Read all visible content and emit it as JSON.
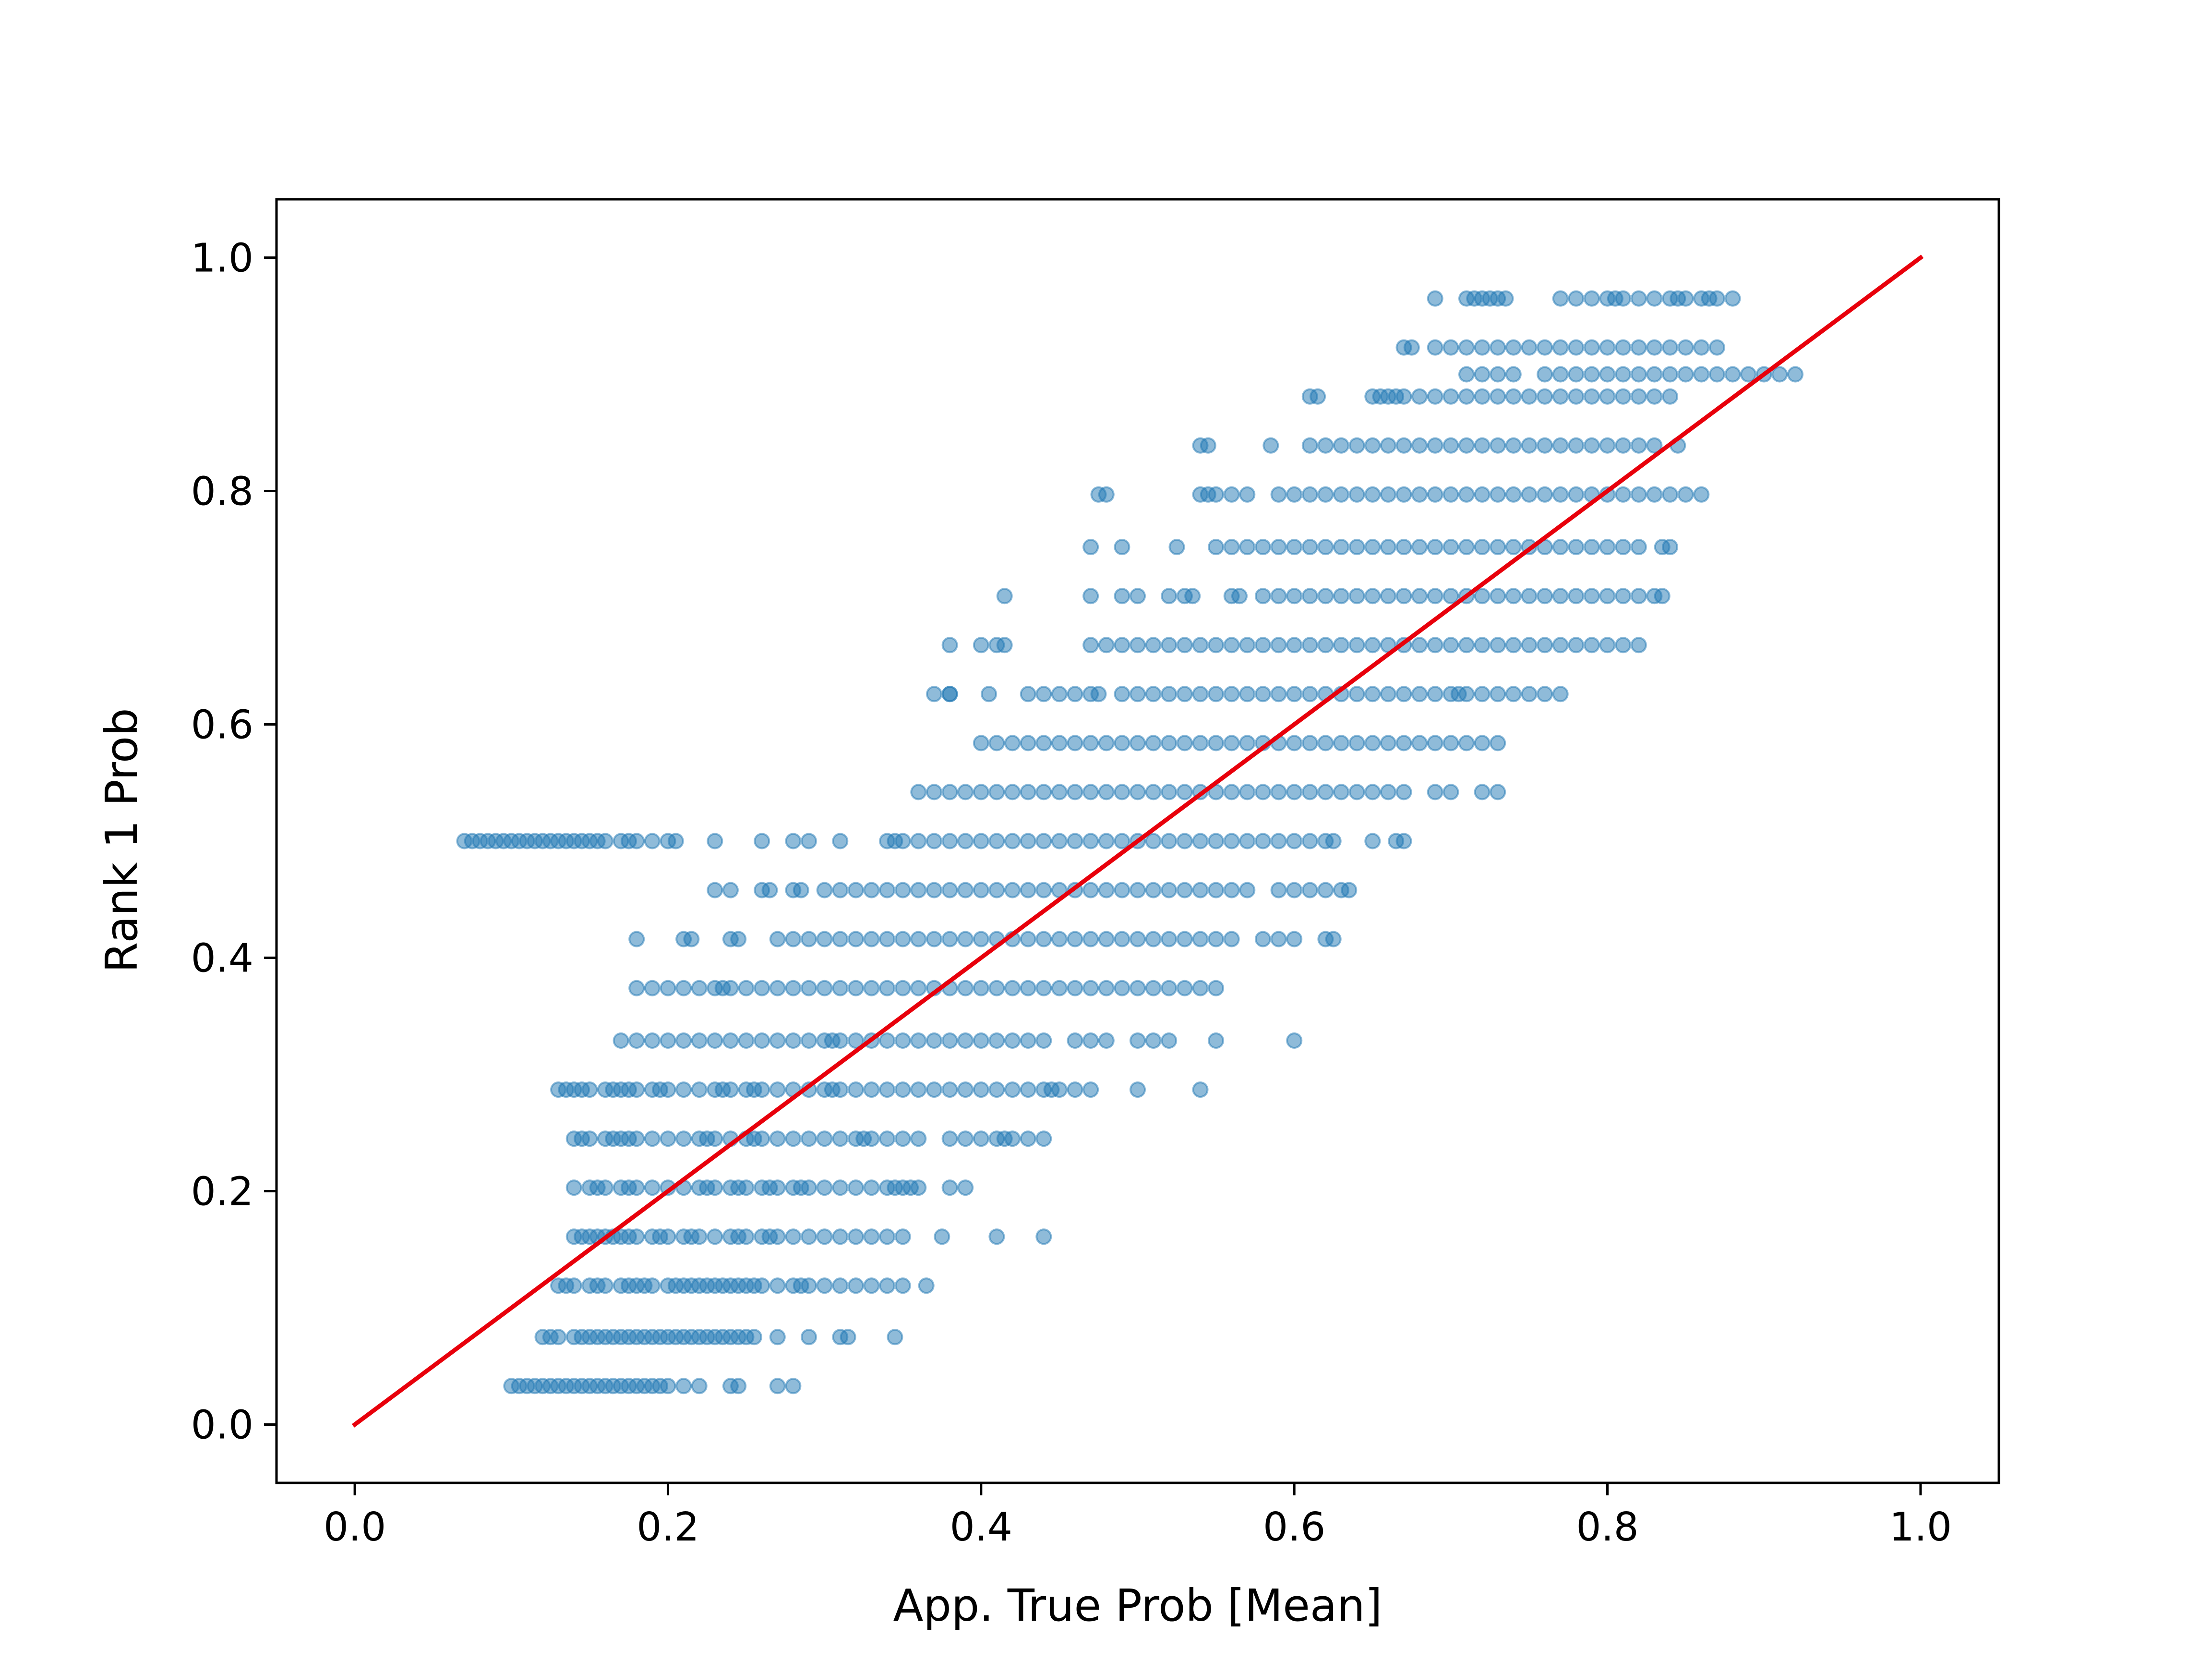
{
  "chart_data": {
    "type": "scatter",
    "xlabel": "App. True Prob [Mean]",
    "ylabel": "Rank 1 Prob",
    "xlim": [
      -0.05,
      1.05
    ],
    "ylim": [
      -0.05,
      1.05
    ],
    "x_ticks": [
      0.0,
      0.2,
      0.4,
      0.6,
      0.8,
      1.0
    ],
    "y_ticks": [
      0.0,
      0.2,
      0.4,
      0.6,
      0.8,
      1.0
    ],
    "x_tick_labels": [
      "0.0",
      "0.2",
      "0.4",
      "0.6",
      "0.8",
      "1.0"
    ],
    "y_tick_labels": [
      "0.0",
      "0.2",
      "0.4",
      "0.6",
      "0.8",
      "1.0"
    ],
    "grid": false,
    "legend": "none",
    "point_color": "#1f77b4",
    "point_alpha": 0.5,
    "line_color": "#e8000b",
    "reference_line": {
      "x": [
        0.0,
        1.0
      ],
      "y": [
        0.0,
        1.0
      ]
    },
    "series": [
      {
        "levels": [
          {
            "y": 0.033,
            "x": [
              0.1,
              0.105,
              0.11,
              0.115,
              0.12,
              0.125,
              0.13,
              0.135,
              0.14,
              0.145,
              0.15,
              0.155,
              0.16,
              0.165,
              0.17,
              0.175,
              0.18,
              0.185,
              0.19,
              0.195,
              0.2,
              0.21,
              0.22,
              0.24,
              0.245,
              0.27,
              0.28
            ]
          },
          {
            "y": 0.075,
            "x": [
              0.12,
              0.125,
              0.13,
              0.14,
              0.145,
              0.15,
              0.155,
              0.16,
              0.165,
              0.17,
              0.175,
              0.18,
              0.185,
              0.19,
              0.195,
              0.2,
              0.205,
              0.21,
              0.215,
              0.22,
              0.225,
              0.23,
              0.235,
              0.24,
              0.245,
              0.25,
              0.255,
              0.27,
              0.29,
              0.31,
              0.315,
              0.345
            ]
          },
          {
            "y": 0.119,
            "x": [
              0.13,
              0.135,
              0.14,
              0.15,
              0.155,
              0.16,
              0.17,
              0.175,
              0.18,
              0.185,
              0.19,
              0.2,
              0.205,
              0.21,
              0.215,
              0.22,
              0.225,
              0.23,
              0.235,
              0.24,
              0.245,
              0.25,
              0.255,
              0.26,
              0.27,
              0.28,
              0.285,
              0.29,
              0.3,
              0.31,
              0.32,
              0.33,
              0.34,
              0.35,
              0.365
            ]
          },
          {
            "y": 0.161,
            "x": [
              0.14,
              0.145,
              0.15,
              0.155,
              0.16,
              0.165,
              0.17,
              0.175,
              0.18,
              0.19,
              0.195,
              0.2,
              0.21,
              0.215,
              0.22,
              0.23,
              0.24,
              0.245,
              0.25,
              0.26,
              0.265,
              0.27,
              0.28,
              0.29,
              0.3,
              0.31,
              0.32,
              0.33,
              0.34,
              0.35,
              0.375,
              0.41,
              0.44
            ]
          },
          {
            "y": 0.203,
            "x": [
              0.14,
              0.15,
              0.155,
              0.16,
              0.17,
              0.175,
              0.18,
              0.19,
              0.2,
              0.21,
              0.22,
              0.225,
              0.23,
              0.24,
              0.245,
              0.25,
              0.26,
              0.265,
              0.27,
              0.28,
              0.285,
              0.29,
              0.3,
              0.31,
              0.32,
              0.33,
              0.34,
              0.345,
              0.35,
              0.355,
              0.36,
              0.38,
              0.39
            ]
          },
          {
            "y": 0.245,
            "x": [
              0.14,
              0.145,
              0.15,
              0.16,
              0.165,
              0.17,
              0.175,
              0.18,
              0.19,
              0.2,
              0.21,
              0.22,
              0.225,
              0.23,
              0.24,
              0.25,
              0.255,
              0.26,
              0.27,
              0.28,
              0.29,
              0.3,
              0.31,
              0.32,
              0.325,
              0.33,
              0.34,
              0.35,
              0.36,
              0.38,
              0.39,
              0.4,
              0.41,
              0.415,
              0.42,
              0.43,
              0.44
            ]
          },
          {
            "y": 0.287,
            "x": [
              0.13,
              0.135,
              0.14,
              0.145,
              0.15,
              0.16,
              0.165,
              0.17,
              0.175,
              0.18,
              0.19,
              0.195,
              0.2,
              0.21,
              0.22,
              0.23,
              0.235,
              0.24,
              0.25,
              0.255,
              0.26,
              0.27,
              0.28,
              0.29,
              0.3,
              0.305,
              0.31,
              0.32,
              0.33,
              0.34,
              0.35,
              0.36,
              0.37,
              0.38,
              0.39,
              0.4,
              0.41,
              0.42,
              0.43,
              0.44,
              0.445,
              0.45,
              0.46,
              0.47,
              0.5,
              0.54
            ]
          },
          {
            "y": 0.329,
            "x": [
              0.17,
              0.18,
              0.19,
              0.2,
              0.21,
              0.22,
              0.23,
              0.24,
              0.25,
              0.26,
              0.27,
              0.28,
              0.29,
              0.3,
              0.305,
              0.31,
              0.32,
              0.33,
              0.34,
              0.35,
              0.36,
              0.37,
              0.38,
              0.39,
              0.4,
              0.41,
              0.42,
              0.43,
              0.44,
              0.46,
              0.47,
              0.48,
              0.5,
              0.51,
              0.52,
              0.55,
              0.6
            ]
          },
          {
            "y": 0.374,
            "x": [
              0.18,
              0.19,
              0.2,
              0.21,
              0.22,
              0.23,
              0.235,
              0.24,
              0.25,
              0.26,
              0.27,
              0.28,
              0.29,
              0.3,
              0.31,
              0.32,
              0.33,
              0.34,
              0.35,
              0.36,
              0.37,
              0.38,
              0.39,
              0.4,
              0.41,
              0.42,
              0.43,
              0.44,
              0.45,
              0.46,
              0.47,
              0.48,
              0.49,
              0.5,
              0.51,
              0.52,
              0.53,
              0.54,
              0.55
            ]
          },
          {
            "y": 0.416,
            "x": [
              0.18,
              0.21,
              0.215,
              0.24,
              0.245,
              0.27,
              0.28,
              0.29,
              0.3,
              0.31,
              0.32,
              0.33,
              0.34,
              0.35,
              0.36,
              0.37,
              0.38,
              0.39,
              0.4,
              0.41,
              0.42,
              0.43,
              0.44,
              0.45,
              0.46,
              0.47,
              0.48,
              0.49,
              0.5,
              0.51,
              0.52,
              0.53,
              0.54,
              0.55,
              0.56,
              0.58,
              0.59,
              0.6,
              0.62,
              0.625
            ]
          },
          {
            "y": 0.458,
            "x": [
              0.23,
              0.24,
              0.26,
              0.265,
              0.28,
              0.285,
              0.3,
              0.31,
              0.32,
              0.33,
              0.34,
              0.35,
              0.36,
              0.37,
              0.38,
              0.39,
              0.4,
              0.41,
              0.42,
              0.43,
              0.44,
              0.45,
              0.46,
              0.47,
              0.48,
              0.49,
              0.5,
              0.51,
              0.52,
              0.53,
              0.54,
              0.55,
              0.56,
              0.57,
              0.59,
              0.6,
              0.61,
              0.62,
              0.63,
              0.635
            ]
          },
          {
            "y": 0.5,
            "x": [
              0.07,
              0.075,
              0.08,
              0.085,
              0.09,
              0.095,
              0.1,
              0.105,
              0.11,
              0.115,
              0.12,
              0.125,
              0.13,
              0.135,
              0.14,
              0.145,
              0.15,
              0.155,
              0.16,
              0.17,
              0.175,
              0.18,
              0.19,
              0.2,
              0.205,
              0.23,
              0.26,
              0.28,
              0.29,
              0.31,
              0.34,
              0.345,
              0.35,
              0.36,
              0.37,
              0.38,
              0.39,
              0.4,
              0.41,
              0.42,
              0.43,
              0.44,
              0.45,
              0.46,
              0.47,
              0.48,
              0.49,
              0.5,
              0.51,
              0.52,
              0.53,
              0.54,
              0.55,
              0.56,
              0.57,
              0.58,
              0.59,
              0.6,
              0.61,
              0.62,
              0.625,
              0.65,
              0.665,
              0.67
            ]
          },
          {
            "y": 0.542,
            "x": [
              0.36,
              0.37,
              0.38,
              0.39,
              0.4,
              0.41,
              0.42,
              0.43,
              0.44,
              0.45,
              0.46,
              0.47,
              0.48,
              0.49,
              0.5,
              0.51,
              0.52,
              0.53,
              0.54,
              0.55,
              0.56,
              0.57,
              0.58,
              0.59,
              0.6,
              0.61,
              0.62,
              0.63,
              0.64,
              0.65,
              0.66,
              0.67,
              0.69,
              0.7,
              0.72,
              0.73
            ]
          },
          {
            "y": 0.584,
            "x": [
              0.4,
              0.41,
              0.42,
              0.43,
              0.44,
              0.45,
              0.46,
              0.47,
              0.48,
              0.49,
              0.5,
              0.51,
              0.52,
              0.53,
              0.54,
              0.55,
              0.56,
              0.57,
              0.58,
              0.59,
              0.6,
              0.61,
              0.62,
              0.63,
              0.64,
              0.65,
              0.66,
              0.67,
              0.68,
              0.69,
              0.7,
              0.71,
              0.72,
              0.73
            ]
          },
          {
            "y": 0.626,
            "x": [
              0.37,
              0.38,
              0.38,
              0.405,
              0.43,
              0.44,
              0.45,
              0.46,
              0.47,
              0.475,
              0.49,
              0.5,
              0.51,
              0.52,
              0.53,
              0.54,
              0.55,
              0.56,
              0.57,
              0.58,
              0.59,
              0.6,
              0.61,
              0.62,
              0.63,
              0.64,
              0.65,
              0.66,
              0.67,
              0.68,
              0.69,
              0.7,
              0.705,
              0.71,
              0.72,
              0.73,
              0.74,
              0.75,
              0.76,
              0.77
            ]
          },
          {
            "y": 0.668,
            "x": [
              0.38,
              0.4,
              0.41,
              0.415,
              0.47,
              0.48,
              0.49,
              0.5,
              0.51,
              0.52,
              0.53,
              0.54,
              0.55,
              0.56,
              0.57,
              0.58,
              0.59,
              0.6,
              0.61,
              0.62,
              0.63,
              0.64,
              0.65,
              0.66,
              0.67,
              0.68,
              0.69,
              0.7,
              0.71,
              0.72,
              0.73,
              0.74,
              0.75,
              0.76,
              0.77,
              0.78,
              0.79,
              0.8,
              0.81,
              0.82
            ]
          },
          {
            "y": 0.71,
            "x": [
              0.415,
              0.47,
              0.49,
              0.5,
              0.52,
              0.53,
              0.535,
              0.56,
              0.565,
              0.58,
              0.59,
              0.6,
              0.61,
              0.62,
              0.63,
              0.64,
              0.65,
              0.66,
              0.67,
              0.68,
              0.69,
              0.7,
              0.71,
              0.72,
              0.73,
              0.74,
              0.75,
              0.76,
              0.77,
              0.78,
              0.79,
              0.8,
              0.81,
              0.82,
              0.83,
              0.835
            ]
          },
          {
            "y": 0.752,
            "x": [
              0.47,
              0.49,
              0.525,
              0.55,
              0.56,
              0.57,
              0.58,
              0.59,
              0.6,
              0.61,
              0.62,
              0.63,
              0.64,
              0.65,
              0.66,
              0.67,
              0.68,
              0.69,
              0.7,
              0.71,
              0.72,
              0.73,
              0.74,
              0.75,
              0.76,
              0.77,
              0.78,
              0.79,
              0.8,
              0.81,
              0.82,
              0.835,
              0.84
            ]
          },
          {
            "y": 0.797,
            "x": [
              0.475,
              0.48,
              0.54,
              0.545,
              0.55,
              0.56,
              0.57,
              0.59,
              0.6,
              0.61,
              0.62,
              0.63,
              0.64,
              0.65,
              0.66,
              0.67,
              0.68,
              0.69,
              0.7,
              0.71,
              0.72,
              0.73,
              0.74,
              0.75,
              0.76,
              0.77,
              0.78,
              0.79,
              0.8,
              0.81,
              0.82,
              0.83,
              0.84,
              0.85,
              0.86
            ]
          },
          {
            "y": 0.839,
            "x": [
              0.54,
              0.545,
              0.585,
              0.61,
              0.62,
              0.63,
              0.64,
              0.65,
              0.66,
              0.67,
              0.68,
              0.69,
              0.7,
              0.71,
              0.72,
              0.73,
              0.74,
              0.75,
              0.76,
              0.77,
              0.78,
              0.79,
              0.8,
              0.81,
              0.82,
              0.83,
              0.845
            ]
          },
          {
            "y": 0.881,
            "x": [
              0.61,
              0.615,
              0.65,
              0.655,
              0.66,
              0.665,
              0.67,
              0.68,
              0.69,
              0.7,
              0.71,
              0.72,
              0.73,
              0.74,
              0.75,
              0.76,
              0.77,
              0.78,
              0.79,
              0.8,
              0.81,
              0.82,
              0.83,
              0.84
            ]
          },
          {
            "y": 0.9,
            "x": [
              0.71,
              0.72,
              0.73,
              0.74,
              0.76,
              0.77,
              0.78,
              0.79,
              0.8,
              0.81,
              0.82,
              0.83,
              0.84,
              0.85,
              0.86,
              0.87,
              0.88,
              0.89,
              0.9,
              0.91,
              0.92
            ]
          },
          {
            "y": 0.923,
            "x": [
              0.67,
              0.675,
              0.69,
              0.7,
              0.71,
              0.72,
              0.73,
              0.74,
              0.75,
              0.76,
              0.77,
              0.78,
              0.79,
              0.8,
              0.81,
              0.82,
              0.83,
              0.84,
              0.85,
              0.86,
              0.87
            ]
          },
          {
            "y": 0.965,
            "x": [
              0.69,
              0.71,
              0.715,
              0.72,
              0.725,
              0.73,
              0.735,
              0.77,
              0.78,
              0.79,
              0.8,
              0.805,
              0.81,
              0.82,
              0.83,
              0.84,
              0.845,
              0.85,
              0.86,
              0.865,
              0.87,
              0.88
            ]
          }
        ]
      }
    ]
  }
}
